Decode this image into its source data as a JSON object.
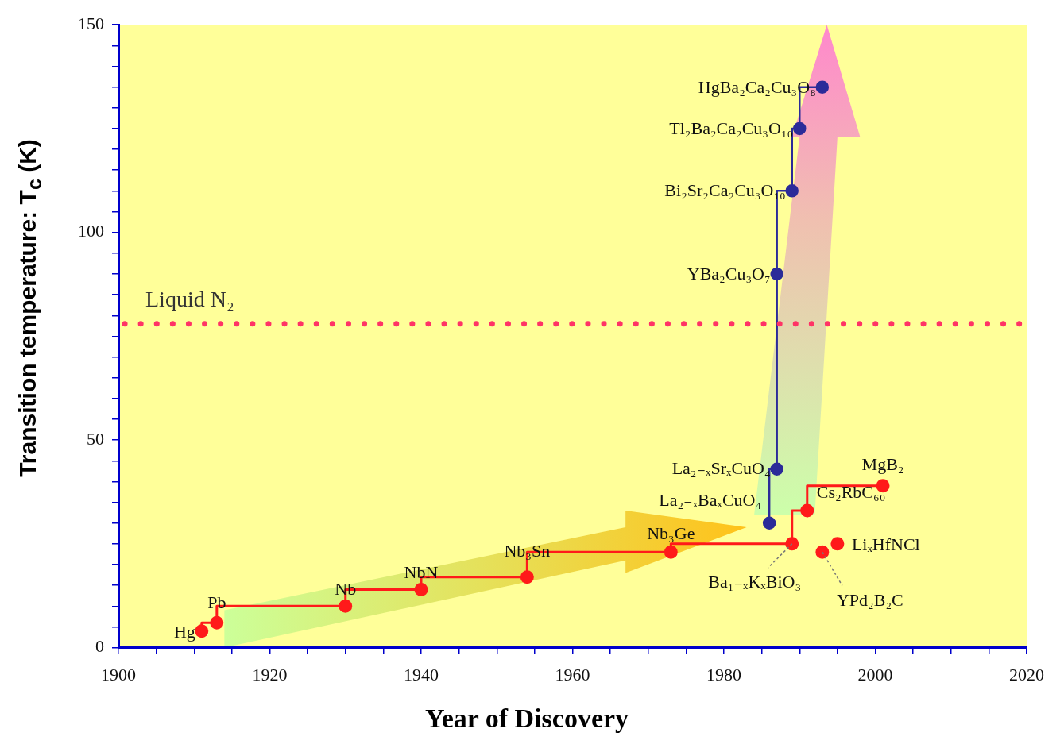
{
  "chart_data": {
    "type": "step",
    "xlabel": "Year of Discovery",
    "ylabel": "Transition temperature: T$_{c}$ (K)",
    "xlim": [
      1900,
      2020
    ],
    "xticks": [
      1900,
      {
        "value": 1905,
        "label": null
      },
      {
        "value": 1910,
        "label": null
      },
      {
        "value": 1915,
        "label": null
      },
      1920,
      {
        "value": 1925,
        "label": null
      },
      {
        "value": 1930,
        "label": null
      },
      {
        "value": 1935,
        "label": null
      },
      1940,
      {
        "value": 1945,
        "label": null
      },
      {
        "value": 1950,
        "label": null
      },
      {
        "value": 1955,
        "label": null
      },
      1960,
      {
        "value": 1965,
        "label": null
      },
      {
        "value": 1970,
        "label": null
      },
      {
        "value": 1975,
        "label": null
      },
      1980,
      {
        "value": 1985,
        "label": null
      },
      {
        "value": 1990,
        "label": null
      },
      {
        "value": 1995,
        "label": null
      },
      2000,
      {
        "value": 2005,
        "label": null
      },
      {
        "value": 2010,
        "label": null
      },
      {
        "value": 2015,
        "label": null
      },
      2020
    ],
    "ylim": [
      0,
      150
    ],
    "yticks": [
      0,
      {
        "value": 5,
        "label": null
      },
      {
        "value": 10,
        "label": null
      },
      {
        "value": 15,
        "label": null
      },
      {
        "value": 20,
        "label": null
      },
      {
        "value": 25,
        "label": null
      },
      {
        "value": 30,
        "label": null
      },
      {
        "value": 35,
        "label": null
      },
      {
        "value": 40,
        "label": null
      },
      {
        "value": 45,
        "label": null
      },
      50,
      {
        "value": 55,
        "label": null
      },
      {
        "value": 60,
        "label": null
      },
      {
        "value": 65,
        "label": null
      },
      {
        "value": 70,
        "label": null
      },
      {
        "value": 75,
        "label": null
      },
      {
        "value": 80,
        "label": null
      },
      {
        "value": 85,
        "label": null
      },
      {
        "value": 90,
        "label": null
      },
      {
        "value": 95,
        "label": null
      },
      100,
      {
        "value": 105,
        "label": null
      },
      {
        "value": 110,
        "label": null
      },
      {
        "value": 115,
        "label": null
      },
      {
        "value": 120,
        "label": null
      },
      {
        "value": 125,
        "label": null
      },
      {
        "value": 130,
        "label": null
      },
      {
        "value": 135,
        "label": null
      },
      {
        "value": 140,
        "label": null
      },
      {
        "value": 145,
        "label": null
      },
      150
    ],
    "series": [
      {
        "color": "#ff1a1a",
        "x": [
          1911,
          1913,
          1930,
          1940,
          1954,
          1973,
          1989,
          1991,
          2001
        ],
        "values": [
          4,
          6,
          10,
          14,
          17,
          23,
          25,
          33,
          39
        ]
      },
      {
        "type": "scatter",
        "color": "#ff1a1a",
        "x": [
          1993,
          1995
        ],
        "values": [
          23,
          25
        ]
      },
      {
        "color": "#2b2b99",
        "x": [
          1986,
          1987,
          1987,
          1989,
          1990,
          1993
        ],
        "values": [
          30,
          43,
          90,
          110,
          125,
          135
        ]
      }
    ],
    "ref_lines": [
      {
        "axis": "y",
        "value": 78,
        "label": "Liquid N₂",
        "color": "#ff3366",
        "line_style": "dotted"
      }
    ],
    "annotations": [
      {
        "text": "Hg",
        "x": 1911,
        "y": 4
      },
      {
        "text": "Pb",
        "x": 1913,
        "y": 6
      },
      {
        "text": "Nb",
        "x": 1930,
        "y": 10
      },
      {
        "text": "NbN",
        "x": 1940,
        "y": 14
      },
      {
        "text": "Nb₃Sn",
        "x": 1954,
        "y": 17
      },
      {
        "text": "Nb₃Ge",
        "x": 1973,
        "y": 23
      },
      {
        "text": "Ba₁₋ₓKₓBiO₃",
        "x": 1989,
        "y": 25
      },
      {
        "text": "Cs₂RbC₆₀",
        "x": 1991,
        "y": 33
      },
      {
        "text": "MgB₂",
        "x": 2001,
        "y": 39
      },
      {
        "text": "YPd₂B₂C",
        "x": 1993,
        "y": 23
      },
      {
        "text": "LiₓHfNCl",
        "x": 1995,
        "y": 25
      },
      {
        "text": "La₂₋ₓBaₓCuO₄",
        "x": 1986,
        "y": 30
      },
      {
        "text": "La₂₋ₓSrₓCuO₄",
        "x": 1987,
        "y": 43
      },
      {
        "text": "YBa₂Cu₃O₇",
        "x": 1987,
        "y": 90
      },
      {
        "text": "Bi₂Sr₂Ca₂Cu₃O₁₀",
        "x": 1989,
        "y": 110
      },
      {
        "text": "Tl₂Ba₂Ca₂Cu₃O₁₀",
        "x": 1990,
        "y": 125
      },
      {
        "text": "HgBa₂Ca₂Cu₃O₈",
        "x": 1993,
        "y": 135
      }
    ],
    "grid": false,
    "legend": false,
    "marker": "circle"
  }
}
